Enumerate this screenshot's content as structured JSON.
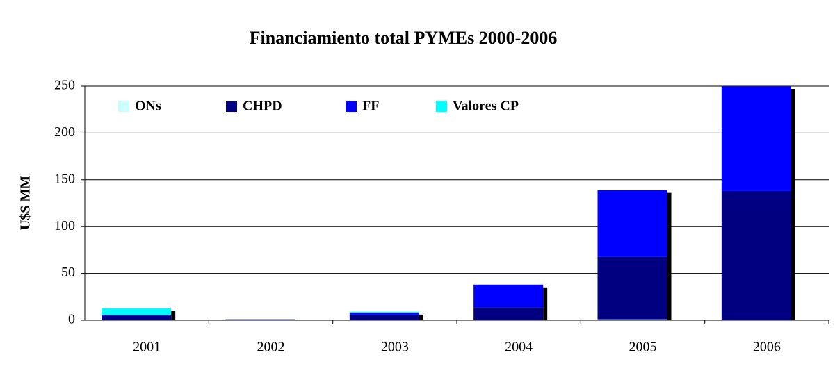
{
  "chart_data": {
    "type": "bar",
    "stacked": true,
    "title": "Financiamiento total PYMEs 2000-2006",
    "y_label": "U$S MM",
    "categories": [
      "2001",
      "2002",
      "2003",
      "2004",
      "2005",
      "2006"
    ],
    "series": [
      {
        "name": "ONs",
        "color": "#ccffff",
        "values": [
          0,
          0,
          0,
          0,
          1,
          0
        ]
      },
      {
        "name": "CHPD",
        "color": "#000080",
        "values": [
          5,
          1,
          6,
          14,
          67,
          138
        ]
      },
      {
        "name": "FF",
        "color": "#0000ff",
        "values": [
          1,
          0,
          2,
          24,
          71,
          112
        ]
      },
      {
        "name": "Valores CP",
        "color": "#00ffff",
        "values": [
          7,
          0,
          1,
          0,
          0,
          0
        ]
      }
    ],
    "ylim": [
      0,
      250
    ],
    "yticks": [
      0,
      50,
      100,
      150,
      200,
      250
    ],
    "grid": true,
    "legend": "top-left"
  }
}
